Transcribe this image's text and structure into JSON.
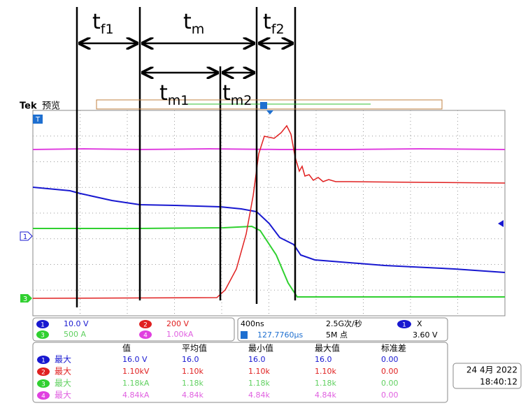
{
  "annotations": [
    {
      "main": "t",
      "sub": "f1"
    },
    {
      "main": "t",
      "sub": "m"
    },
    {
      "main": "t",
      "sub": "f2"
    },
    {
      "main": "t",
      "sub": "m1"
    },
    {
      "main": "t",
      "sub": "m2"
    }
  ],
  "header": {
    "brand": "Tek",
    "mode": "预览"
  },
  "markers": {
    "trigger": "T",
    "ch1": "1",
    "ch3": "3"
  },
  "channels": [
    {
      "num": "1",
      "scale": "10.0 V"
    },
    {
      "num": "2",
      "scale": "200 V"
    },
    {
      "num": "3",
      "scale": "500 A"
    },
    {
      "num": "4",
      "scale": "1.00kA"
    }
  ],
  "acquisition": {
    "timebase": "400ns",
    "rate": "2.5G次/秒",
    "points": "5M 点",
    "position": "127.7760µs",
    "trigger_channel": "1",
    "trigger_symbol": "Ⅹ",
    "trigger_level": "3.60 V"
  },
  "measurements": {
    "header": [
      "值",
      "平均值",
      "最小值",
      "最大值",
      "标准差"
    ],
    "rows": [
      {
        "num": "1",
        "label": "最大",
        "cells": [
          "16.0 V",
          "16.0",
          "16.0",
          "16.0",
          "0.00"
        ]
      },
      {
        "num": "2",
        "label": "最大",
        "cells": [
          "1.10kV",
          "1.10k",
          "1.10k",
          "1.10k",
          "0.00"
        ]
      },
      {
        "num": "3",
        "label": "最大",
        "cells": [
          "1.18kA",
          "1.18k",
          "1.18k",
          "1.18k",
          "0.00"
        ]
      },
      {
        "num": "4",
        "label": "最大",
        "cells": [
          "4.84kA",
          "4.84k",
          "4.84k",
          "4.84k",
          "0.00"
        ]
      }
    ]
  },
  "datetime": {
    "date": "24 4月 2022",
    "time": "18:40:12"
  }
}
